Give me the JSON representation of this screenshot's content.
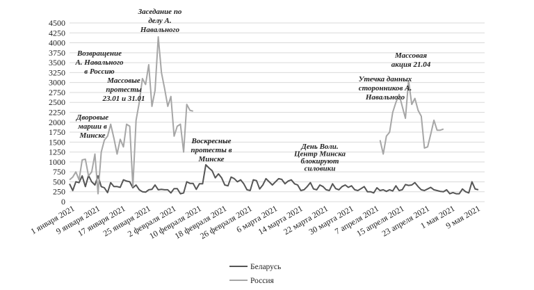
{
  "chart_data": {
    "type": "line",
    "title": "",
    "xlabel": "",
    "ylabel": "",
    "ylim": [
      0,
      4500
    ],
    "yticks": [
      0,
      250,
      500,
      750,
      1000,
      1250,
      1500,
      1750,
      2000,
      2250,
      2500,
      2750,
      3000,
      3250,
      3500,
      3750,
      4000,
      4250,
      4500
    ],
    "xlim": [
      "2021-01-01",
      "2021-05-12"
    ],
    "xticks": [
      {
        "date": "2021-01-01",
        "label": "1 января 2021"
      },
      {
        "date": "2021-01-09",
        "label": "9 января 2021"
      },
      {
        "date": "2021-01-17",
        "label": "17 января 2021"
      },
      {
        "date": "2021-01-25",
        "label": "25 января 2021"
      },
      {
        "date": "2021-02-02",
        "label": "2 февраля 2021"
      },
      {
        "date": "2021-02-10",
        "label": "10 февраля 2021"
      },
      {
        "date": "2021-02-18",
        "label": "18 февраля 2021"
      },
      {
        "date": "2021-02-26",
        "label": "26 февраля 2021"
      },
      {
        "date": "2021-03-06",
        "label": "6 марта 2021"
      },
      {
        "date": "2021-03-14",
        "label": "14 марта 2021"
      },
      {
        "date": "2021-03-22",
        "label": "22 марта 2021"
      },
      {
        "date": "2021-03-30",
        "label": "30 марта 2021"
      },
      {
        "date": "2021-04-07",
        "label": "7 апреля 2021"
      },
      {
        "date": "2021-04-15",
        "label": "15 апреля 2021"
      },
      {
        "date": "2021-04-23",
        "label": "23 апреля 2021"
      },
      {
        "date": "2021-05-01",
        "label": "1 мая 2021"
      },
      {
        "date": "2021-05-09",
        "label": "9 мая 2021"
      }
    ],
    "grid": true,
    "legend_position": "bottom",
    "series": [
      {
        "name": "Беларусь",
        "color": "#555555",
        "points": [
          [
            "2021-01-01",
            450
          ],
          [
            "2021-01-02",
            280
          ],
          [
            "2021-01-03",
            500
          ],
          [
            "2021-01-04",
            480
          ],
          [
            "2021-01-05",
            650
          ],
          [
            "2021-01-06",
            380
          ],
          [
            "2021-01-07",
            660
          ],
          [
            "2021-01-08",
            500
          ],
          [
            "2021-01-09",
            420
          ],
          [
            "2021-01-10",
            650
          ],
          [
            "2021-01-11",
            380
          ],
          [
            "2021-01-12",
            350
          ],
          [
            "2021-01-13",
            230
          ],
          [
            "2021-01-14",
            480
          ],
          [
            "2021-01-15",
            380
          ],
          [
            "2021-01-16",
            380
          ],
          [
            "2021-01-17",
            360
          ],
          [
            "2021-01-18",
            550
          ],
          [
            "2021-01-19",
            520
          ],
          [
            "2021-01-20",
            500
          ],
          [
            "2021-01-21",
            350
          ],
          [
            "2021-01-22",
            420
          ],
          [
            "2021-01-23",
            300
          ],
          [
            "2021-01-24",
            250
          ],
          [
            "2021-01-25",
            240
          ],
          [
            "2021-01-26",
            300
          ],
          [
            "2021-01-27",
            310
          ],
          [
            "2021-01-28",
            420
          ],
          [
            "2021-01-29",
            300
          ],
          [
            "2021-01-30",
            310
          ],
          [
            "2021-01-31",
            300
          ],
          [
            "2021-02-01",
            300
          ],
          [
            "2021-02-02",
            220
          ],
          [
            "2021-02-03",
            330
          ],
          [
            "2021-02-04",
            330
          ],
          [
            "2021-02-05",
            200
          ],
          [
            "2021-02-06",
            220
          ],
          [
            "2021-02-07",
            500
          ],
          [
            "2021-02-08",
            460
          ],
          [
            "2021-02-09",
            460
          ],
          [
            "2021-02-10",
            310
          ],
          [
            "2021-02-11",
            450
          ],
          [
            "2021-02-12",
            450
          ],
          [
            "2021-02-13",
            930
          ],
          [
            "2021-02-14",
            850
          ],
          [
            "2021-02-15",
            780
          ],
          [
            "2021-02-16",
            600
          ],
          [
            "2021-02-17",
            700
          ],
          [
            "2021-02-18",
            600
          ],
          [
            "2021-02-19",
            420
          ],
          [
            "2021-02-20",
            400
          ],
          [
            "2021-02-21",
            620
          ],
          [
            "2021-02-22",
            580
          ],
          [
            "2021-02-23",
            500
          ],
          [
            "2021-02-24",
            550
          ],
          [
            "2021-02-25",
            450
          ],
          [
            "2021-02-26",
            300
          ],
          [
            "2021-02-27",
            280
          ],
          [
            "2021-02-28",
            550
          ],
          [
            "2021-03-01",
            530
          ],
          [
            "2021-03-02",
            320
          ],
          [
            "2021-03-03",
            420
          ],
          [
            "2021-03-04",
            580
          ],
          [
            "2021-03-05",
            500
          ],
          [
            "2021-03-06",
            420
          ],
          [
            "2021-03-07",
            500
          ],
          [
            "2021-03-08",
            580
          ],
          [
            "2021-03-09",
            560
          ],
          [
            "2021-03-10",
            450
          ],
          [
            "2021-03-11",
            520
          ],
          [
            "2021-03-12",
            550
          ],
          [
            "2021-03-13",
            450
          ],
          [
            "2021-03-14",
            420
          ],
          [
            "2021-03-15",
            280
          ],
          [
            "2021-03-16",
            300
          ],
          [
            "2021-03-17",
            380
          ],
          [
            "2021-03-18",
            480
          ],
          [
            "2021-03-19",
            320
          ],
          [
            "2021-03-20",
            300
          ],
          [
            "2021-03-21",
            420
          ],
          [
            "2021-03-22",
            380
          ],
          [
            "2021-03-23",
            300
          ],
          [
            "2021-03-24",
            280
          ],
          [
            "2021-03-25",
            450
          ],
          [
            "2021-03-26",
            330
          ],
          [
            "2021-03-27",
            300
          ],
          [
            "2021-03-28",
            380
          ],
          [
            "2021-03-29",
            420
          ],
          [
            "2021-03-30",
            360
          ],
          [
            "2021-03-31",
            400
          ],
          [
            "2021-04-01",
            300
          ],
          [
            "2021-04-02",
            280
          ],
          [
            "2021-04-03",
            330
          ],
          [
            "2021-04-04",
            380
          ],
          [
            "2021-04-05",
            250
          ],
          [
            "2021-04-06",
            250
          ],
          [
            "2021-04-07",
            220
          ],
          [
            "2021-04-08",
            350
          ],
          [
            "2021-04-09",
            280
          ],
          [
            "2021-04-10",
            300
          ],
          [
            "2021-04-11",
            260
          ],
          [
            "2021-04-12",
            300
          ],
          [
            "2021-04-13",
            270
          ],
          [
            "2021-04-14",
            400
          ],
          [
            "2021-04-15",
            280
          ],
          [
            "2021-04-16",
            300
          ],
          [
            "2021-04-17",
            430
          ],
          [
            "2021-04-18",
            410
          ],
          [
            "2021-04-19",
            420
          ],
          [
            "2021-04-20",
            480
          ],
          [
            "2021-04-21",
            380
          ],
          [
            "2021-04-22",
            300
          ],
          [
            "2021-04-23",
            280
          ],
          [
            "2021-04-24",
            320
          ],
          [
            "2021-04-25",
            360
          ],
          [
            "2021-04-26",
            300
          ],
          [
            "2021-04-27",
            280
          ],
          [
            "2021-04-28",
            260
          ],
          [
            "2021-04-29",
            250
          ],
          [
            "2021-04-30",
            300
          ],
          [
            "2021-05-01",
            200
          ],
          [
            "2021-05-02",
            230
          ],
          [
            "2021-05-03",
            200
          ],
          [
            "2021-05-04",
            200
          ],
          [
            "2021-05-05",
            320
          ],
          [
            "2021-05-06",
            250
          ],
          [
            "2021-05-07",
            220
          ],
          [
            "2021-05-08",
            500
          ],
          [
            "2021-05-09",
            320
          ],
          [
            "2021-05-10",
            300
          ]
        ]
      },
      {
        "name": "Россия",
        "color": "#a6a6a6",
        "segments": [
          [
            [
              "2021-01-01",
              550
            ],
            [
              "2021-01-02",
              620
            ],
            [
              "2021-01-03",
              750
            ],
            [
              "2021-01-04",
              550
            ],
            [
              "2021-01-05",
              1050
            ],
            [
              "2021-01-06",
              1070
            ],
            [
              "2021-01-07",
              650
            ],
            [
              "2021-01-08",
              750
            ],
            [
              "2021-01-09",
              1200
            ],
            [
              "2021-01-10",
              200
            ],
            [
              "2021-01-11",
              1250
            ],
            [
              "2021-01-12",
              1550
            ],
            [
              "2021-01-13",
              1650
            ],
            [
              "2021-01-14",
              1950
            ],
            [
              "2021-01-15",
              1600
            ],
            [
              "2021-01-16",
              1200
            ],
            [
              "2021-01-17",
              1570
            ],
            [
              "2021-01-18",
              1380
            ],
            [
              "2021-01-19",
              1950
            ],
            [
              "2021-01-20",
              1900
            ],
            [
              "2021-01-21",
              380
            ],
            [
              "2021-01-22",
              2050
            ],
            [
              "2021-01-23",
              2500
            ],
            [
              "2021-01-24",
              3100
            ],
            [
              "2021-01-25",
              2950
            ],
            [
              "2021-01-26",
              3450
            ],
            [
              "2021-01-27",
              2400
            ],
            [
              "2021-01-28",
              2800
            ],
            [
              "2021-01-29",
              4150
            ],
            [
              "2021-01-30",
              3250
            ],
            [
              "2021-01-31",
              2850
            ],
            [
              "2021-02-01",
              2400
            ],
            [
              "2021-02-02",
              2650
            ],
            [
              "2021-02-03",
              1650
            ],
            [
              "2021-02-04",
              1900
            ],
            [
              "2021-02-05",
              1950
            ],
            [
              "2021-02-06",
              1250
            ],
            [
              "2021-02-07",
              2450
            ],
            [
              "2021-02-08",
              2300
            ],
            [
              "2021-02-09",
              2280
            ]
          ],
          [
            [
              "2021-04-09",
              1550
            ],
            [
              "2021-04-10",
              1200
            ],
            [
              "2021-04-11",
              1650
            ],
            [
              "2021-04-12",
              1750
            ],
            [
              "2021-04-13",
              2250
            ],
            [
              "2021-04-14",
              2500
            ],
            [
              "2021-04-15",
              2700
            ],
            [
              "2021-04-16",
              2400
            ],
            [
              "2021-04-17",
              2100
            ],
            [
              "2021-04-18",
              3050
            ],
            [
              "2021-04-19",
              2450
            ],
            [
              "2021-04-20",
              2600
            ],
            [
              "2021-04-21",
              2300
            ],
            [
              "2021-04-22",
              2150
            ],
            [
              "2021-04-23",
              1350
            ],
            [
              "2021-04-24",
              1380
            ],
            [
              "2021-04-25",
              1700
            ],
            [
              "2021-04-26",
              2050
            ],
            [
              "2021-04-27",
              1800
            ],
            [
              "2021-04-28",
              1800
            ],
            [
              "2021-04-29",
              1830
            ]
          ]
        ]
      }
    ],
    "annotations": [
      {
        "lines": [
          "Заседание по",
          "делу А.",
          "Навального"
        ]
      },
      {
        "lines": [
          "Возвращение",
          "А. Навального",
          "в Россию"
        ]
      },
      {
        "lines": [
          "Массовые",
          "протесты",
          "23.01 и 31.01"
        ]
      },
      {
        "lines": [
          "Дворовые",
          "марши в",
          "Минске"
        ]
      },
      {
        "lines": [
          "Воскресные",
          "протесты в",
          "Минске"
        ]
      },
      {
        "lines": [
          "День Воли.",
          "Центр Минска",
          "блокируют",
          "силовики"
        ]
      },
      {
        "lines": [
          "Массовая",
          "акция 21.04"
        ]
      },
      {
        "lines": [
          "Утечка данных",
          "сторонников А.",
          "Навального"
        ]
      }
    ]
  }
}
